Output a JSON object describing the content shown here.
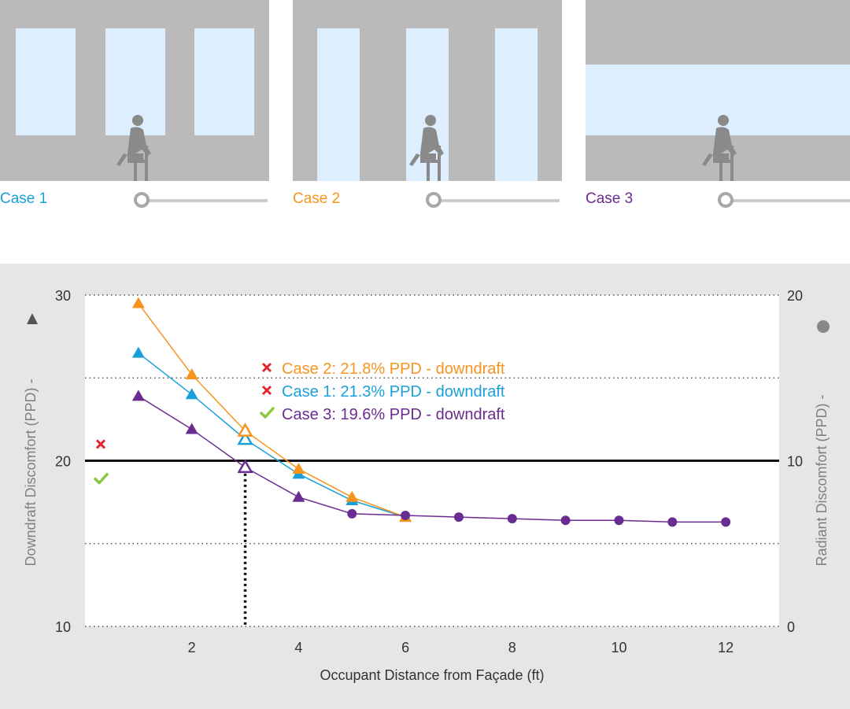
{
  "cases": [
    {
      "label": "Case 1",
      "color": "#1aa0d8",
      "glazing": "punched"
    },
    {
      "label": "Case 2",
      "color": "#f7941d",
      "glazing": "vertical-strips"
    },
    {
      "label": "Case 3",
      "color": "#6b2c91",
      "glazing": "horizontal-band"
    }
  ],
  "chart_data": {
    "type": "line",
    "xlabel": "Occupant Distance from Façade (ft)",
    "ylabel_left": "Downdraft Discomfort (PPD) -",
    "ylabel_right": "Radiant Discomfort (PPD) -",
    "ylim_left": [
      10,
      30
    ],
    "ylim_right": [
      0,
      20
    ],
    "xlim": [
      0,
      13
    ],
    "x_ticks": [
      2,
      4,
      6,
      8,
      10,
      12
    ],
    "y_left_ticks": [
      10,
      20,
      30
    ],
    "y_right_ticks": [
      0,
      10,
      20
    ],
    "threshold": 20,
    "marker_x": 3,
    "grid": "dotted",
    "series": [
      {
        "name": "Case 1",
        "color": "#1aa0d8",
        "downdraft": [
          [
            1,
            26.5
          ],
          [
            2,
            24.0
          ],
          [
            3,
            21.3
          ],
          [
            4,
            19.2
          ],
          [
            5,
            17.6
          ],
          [
            6,
            16.6
          ]
        ],
        "radiant": []
      },
      {
        "name": "Case 2",
        "color": "#f7941d",
        "downdraft": [
          [
            1,
            29.5
          ],
          [
            2,
            25.2
          ],
          [
            3,
            21.8
          ],
          [
            4,
            19.5
          ],
          [
            5,
            17.8
          ],
          [
            6,
            16.6
          ]
        ],
        "radiant": []
      },
      {
        "name": "Case 3",
        "color": "#6b2c91",
        "downdraft": [
          [
            1,
            23.9
          ],
          [
            2,
            21.9
          ],
          [
            3,
            19.6
          ],
          [
            4,
            17.8
          ]
        ],
        "radiant": [
          [
            5,
            6.8
          ],
          [
            6,
            6.7
          ],
          [
            7,
            6.6
          ],
          [
            8,
            6.5
          ],
          [
            9,
            6.4
          ],
          [
            10,
            6.4
          ],
          [
            11,
            6.3
          ],
          [
            12,
            6.3
          ]
        ]
      }
    ],
    "annotations": [
      {
        "text": "Case 2: 21.8% PPD - downdraft",
        "color": "#f7941d",
        "status": "fail"
      },
      {
        "text": "Case 1: 21.3% PPD - downdraft",
        "color": "#1aa0d8",
        "status": "fail"
      },
      {
        "text": "Case 3: 19.6% PPD - downdraft",
        "color": "#6b2c91",
        "status": "pass"
      }
    ],
    "summary_marks": [
      {
        "status": "fail",
        "y": 21.0
      },
      {
        "status": "pass",
        "y": 18.9
      }
    ],
    "status_colors": {
      "fail": "#e8252f",
      "pass": "#8dc63f"
    }
  }
}
